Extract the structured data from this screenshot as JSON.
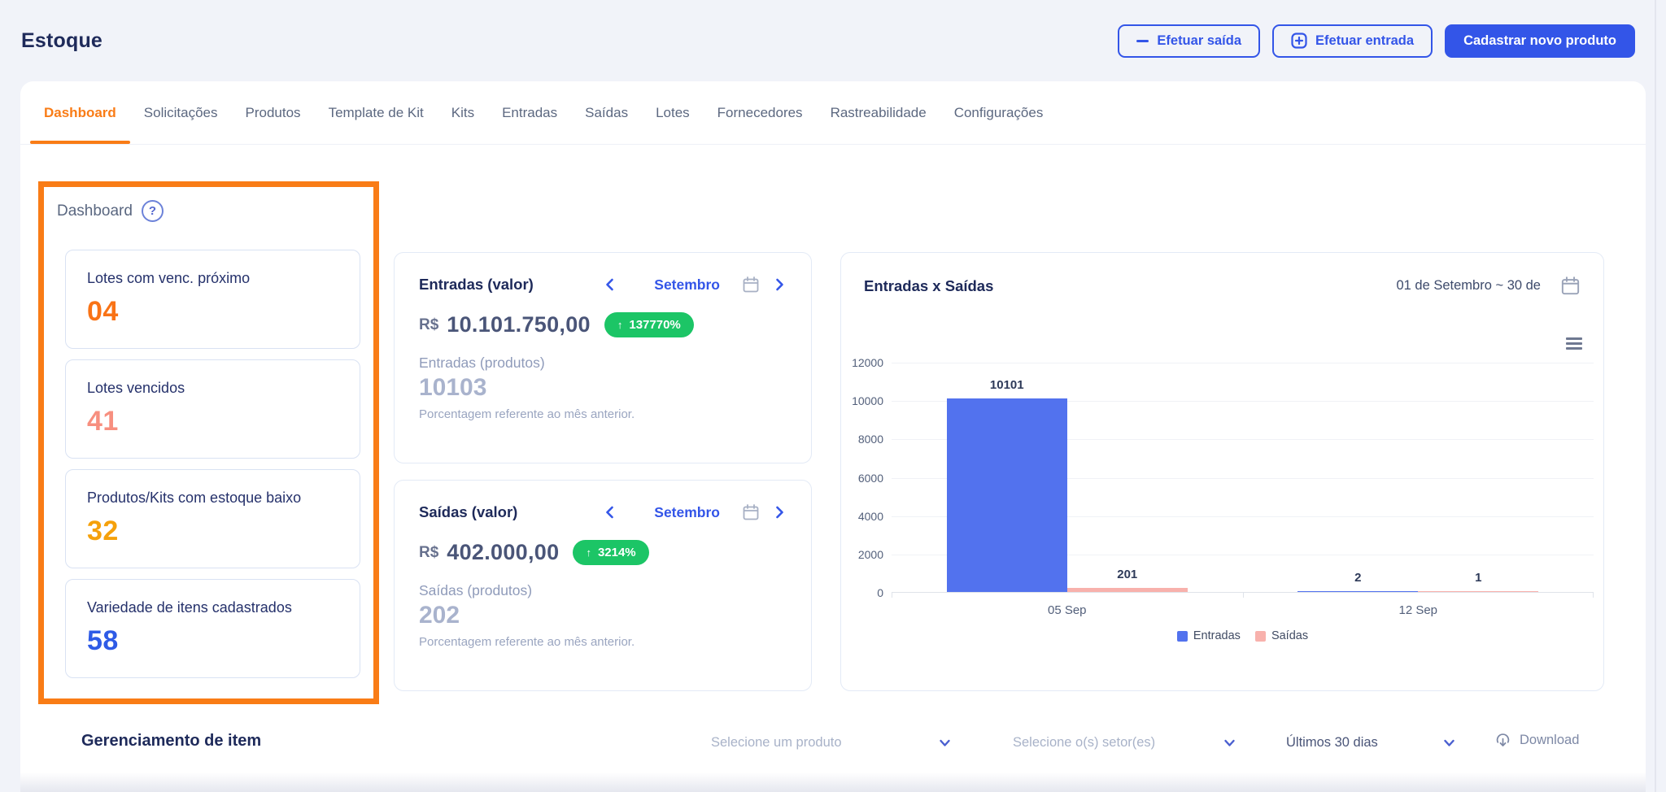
{
  "header": {
    "title": "Estoque"
  },
  "actions": {
    "efetuar_saida": "Efetuar saída",
    "efetuar_entrada": "Efetuar entrada",
    "cadastrar_novo_produto": "Cadastrar novo produto"
  },
  "tabs": [
    {
      "label": "Dashboard",
      "active": true
    },
    {
      "label": "Solicitações"
    },
    {
      "label": "Produtos"
    },
    {
      "label": "Template de Kit"
    },
    {
      "label": "Kits"
    },
    {
      "label": "Entradas"
    },
    {
      "label": "Saídas"
    },
    {
      "label": "Lotes"
    },
    {
      "label": "Fornecedores"
    },
    {
      "label": "Rastreabilidade"
    },
    {
      "label": "Configurações"
    }
  ],
  "dashboard_panel": {
    "title": "Dashboard",
    "help_icon": "?",
    "stats": [
      {
        "label": "Lotes com venc. próximo",
        "value": "04",
        "color": "#f97316"
      },
      {
        "label": "Lotes vencidos",
        "value": "41",
        "color": "#f78f7f"
      },
      {
        "label": "Produtos/Kits com estoque baixo",
        "value": "32",
        "color": "#f5a10b"
      },
      {
        "label": "Variedade de itens cadastrados",
        "value": "58",
        "color": "#2e5be6"
      }
    ]
  },
  "entradas_card": {
    "title": "Entradas (valor)",
    "month": "Setembro",
    "currency_prefix": "R$",
    "value": "10.101.750,00",
    "badge_arrow": "↑",
    "badge": "137770%",
    "products_label": "Entradas (produtos)",
    "products_value": "10103",
    "footnote": "Porcentagem referente ao mês anterior."
  },
  "saidas_card": {
    "title": "Saídas (valor)",
    "month": "Setembro",
    "currency_prefix": "R$",
    "value": "402.000,00",
    "badge_arrow": "↑",
    "badge": "3214%",
    "products_label": "Saídas (produtos)",
    "products_value": "202",
    "footnote": "Porcentagem referente ao mês anterior."
  },
  "chart_card": {
    "title": "Entradas x Saídas",
    "date_range": "01 de Setembro ~ 30 de"
  },
  "chart_data": {
    "type": "bar",
    "title": "Entradas x Saídas",
    "categories": [
      "05 Sep",
      "12 Sep"
    ],
    "series": [
      {
        "name": "Entradas",
        "color": "#5272ee",
        "values": [
          10101,
          2
        ]
      },
      {
        "name": "Saídas",
        "color": "#f8b1ac",
        "values": [
          201,
          1
        ]
      }
    ],
    "ylim": [
      0,
      12000
    ],
    "yticks": [
      0,
      2000,
      4000,
      6000,
      8000,
      10000,
      12000
    ],
    "xlabel": "",
    "ylabel": "",
    "grid": true,
    "legend_position": "bottom",
    "bar_value_labels": true
  },
  "item_management": {
    "title": "Gerenciamento de item",
    "product_select_placeholder": "Selecione um produto",
    "sector_select_placeholder": "Selecione o(s) setor(es)",
    "period_select_value": "Últimos 30 dias",
    "download_label": "Download"
  },
  "colors": {
    "accent_blue": "#3355e8",
    "annotation_orange": "#f97c16",
    "badge_green": "#1cc566",
    "bar_entradas": "#5272ee",
    "bar_saidas": "#f8b1ac",
    "navy": "#1e2a5a"
  }
}
